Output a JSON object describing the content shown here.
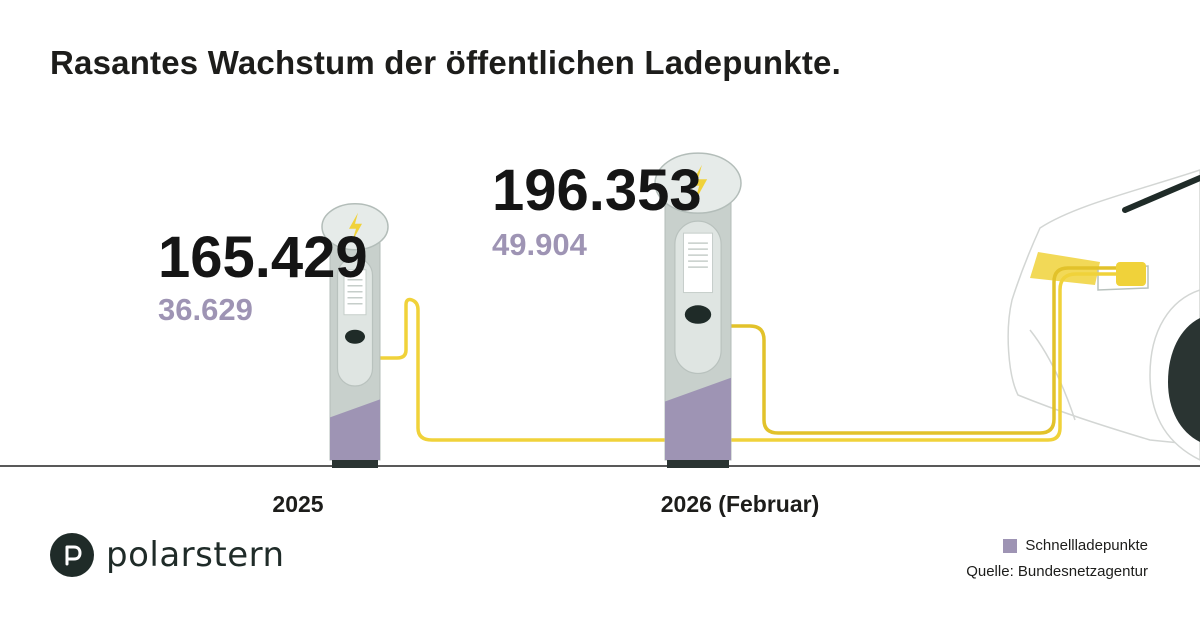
{
  "title": "Rasantes Wachstum der öffentlichen Ladepunkte.",
  "chart_data": {
    "type": "bar",
    "categories": [
      "2025",
      "2026 (Februar)"
    ],
    "series": [
      {
        "name": "",
        "values": [
          165429,
          196353
        ]
      },
      {
        "name": "Schnellladepunkte",
        "values": [
          36629,
          49904
        ]
      }
    ],
    "value_labels": {
      "total": [
        "165.429",
        "196.353"
      ],
      "fast": [
        "36.629",
        "49.904"
      ]
    }
  },
  "legend": {
    "label": "Schnellladepunkte",
    "color": "#9e94b4"
  },
  "source": "Quelle: Bundesnetzagentur",
  "brand": {
    "name": "polarstern",
    "icon": "p-circle-icon"
  },
  "colors": {
    "fast": "#9e94b4",
    "pillar": "#c8d0cc",
    "pillar_edge": "#b3bdb9",
    "cable": "#f0d23a",
    "bolt": "#f0d23a",
    "dark": "#1f2b28"
  }
}
